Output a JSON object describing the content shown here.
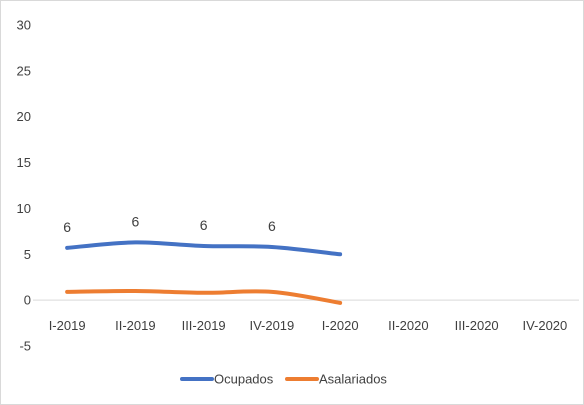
{
  "chart_data": {
    "type": "line",
    "categories": [
      "I-2019",
      "II-2019",
      "III-2019",
      "IV-2019",
      "I-2020",
      "II-2020",
      "III-2020",
      "IV-2020"
    ],
    "ylim": [
      -5,
      30
    ],
    "yticks": [
      30,
      25,
      20,
      15,
      10,
      5,
      0,
      -5
    ],
    "grid": false,
    "smooth": true,
    "legend_position": "bottom",
    "series": [
      {
        "name": "Ocupados",
        "color": "#4472c4",
        "values": [
          5.7,
          6.3,
          5.9,
          5.8,
          5.0,
          null,
          null,
          null
        ],
        "data_labels": [
          "6",
          "6",
          "6",
          "6",
          "",
          "",
          "",
          ""
        ]
      },
      {
        "name": "Asalariados",
        "color": "#ed7d31",
        "values": [
          0.9,
          1.0,
          0.8,
          0.9,
          -0.3,
          null,
          null,
          null
        ],
        "data_labels": [
          "",
          "",
          "",
          "",
          "",
          "",
          "",
          ""
        ]
      }
    ]
  }
}
